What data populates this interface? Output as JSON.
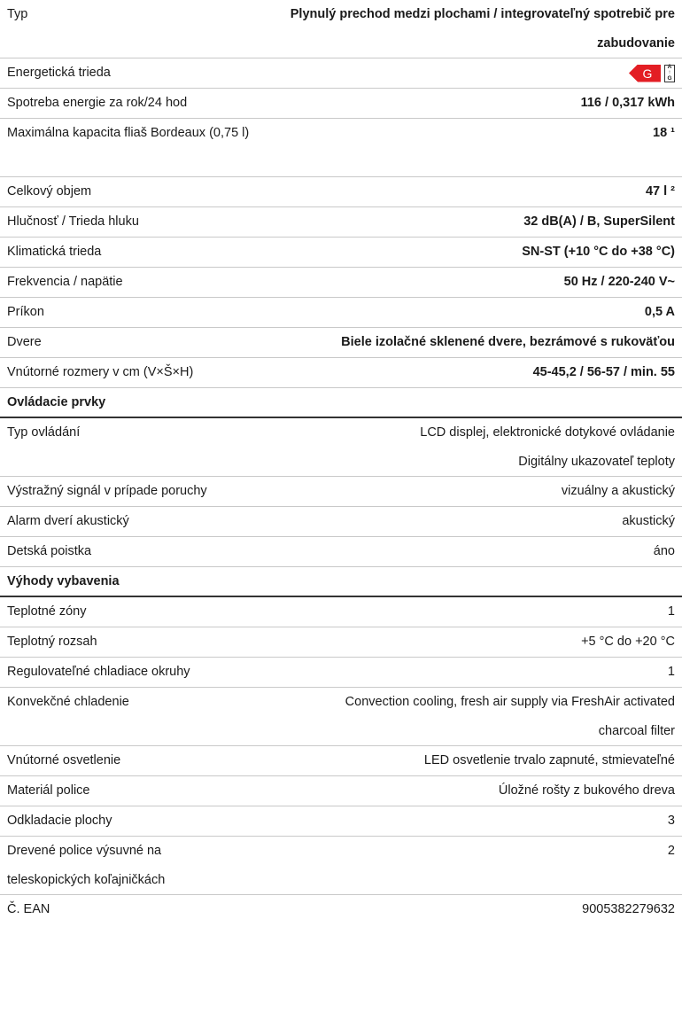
{
  "rows": [
    {
      "label": "Typ",
      "value": "Plynulý prechod medzi plochami / integrovateľný spotrebič pre zabudovanie"
    },
    {
      "label": "Energetická trieda",
      "energy_class": "G",
      "scale_top": "A",
      "scale_arrow": "↑",
      "scale_bottom": "G",
      "energy_color": "#e31e24"
    },
    {
      "label": "Spotreba energie za rok/24 hod",
      "value": "116 / 0,317 kWh"
    },
    {
      "label": "Maximálna kapacita fliaš Bordeaux (0,75 l)",
      "value": "18 ¹"
    },
    {
      "label": "Celkový objem",
      "value": "47 l ²"
    },
    {
      "label": "Hlučnosť / Trieda hluku",
      "value": "32 dB(A) / B, SuperSilent"
    },
    {
      "label": "Klimatická trieda",
      "value": "SN-ST (+10 °C do +38 °C)"
    },
    {
      "label": "Frekvencia / napätie",
      "value": "50 Hz / 220-240 V~"
    },
    {
      "label": "Príkon",
      "value": "0,5 A"
    },
    {
      "label": "Dvere",
      "value": "Biele izolačné sklenené dvere, bezrámové s rukoväťou"
    },
    {
      "label": "Vnútorné rozmery v cm (V×Š×H)",
      "value": "45-45,2 / 56-57 / min. 55"
    }
  ],
  "section_controls": "Ovládacie prvky",
  "controls": [
    {
      "label": "Typ ovládání",
      "value": "LCD displej, elektronické dotykové ovládanie",
      "value2": "Digitálny ukazovateľ teploty"
    },
    {
      "label": "Výstražný signál v prípade poruchy",
      "value": "vizuálny a akustický"
    },
    {
      "label": "Alarm dverí akustický",
      "value": "akustický"
    },
    {
      "label": "Detská poistka",
      "value": "áno"
    }
  ],
  "section_features": "Výhody vybavenia",
  "features": [
    {
      "label": "Teplotné zóny",
      "value": "1"
    },
    {
      "label": "Teplotný rozsah",
      "value": "+5 °C do +20 °C"
    },
    {
      "label": "Regulovateľné chladiace okruhy",
      "value": "1"
    },
    {
      "label": "Konvekčné chladenie",
      "value": "Convection cooling, fresh air supply via FreshAir activated charcoal filter"
    },
    {
      "label": "Vnútorné osvetlenie",
      "value": "LED osvetlenie trvalo zapnuté, stmievateľné"
    },
    {
      "label": "Materiál police",
      "value": "Úložné rošty z bukového dreva"
    },
    {
      "label": "Odkladacie plochy",
      "value": "3"
    },
    {
      "label": "Drevené police výsuvné na teleskopických koľajničkách",
      "value": "2"
    },
    {
      "label": "Č. EAN",
      "value": "9005382279632"
    }
  ]
}
